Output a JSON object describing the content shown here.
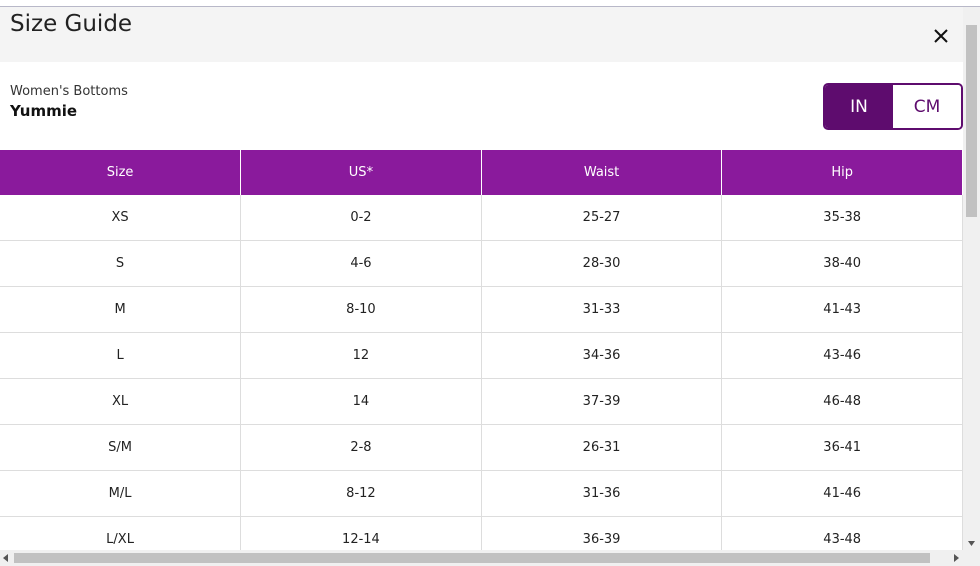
{
  "header": {
    "title": "Size Guide"
  },
  "product": {
    "category": "Women's Bottoms",
    "brand": "Yummie"
  },
  "unit_toggle": {
    "options": [
      "IN",
      "CM"
    ],
    "selected": "IN"
  },
  "table": {
    "columns": [
      "Size",
      "US*",
      "Waist",
      "Hip"
    ],
    "rows": [
      [
        "XS",
        "0-2",
        "25-27",
        "35-38"
      ],
      [
        "S",
        "4-6",
        "28-30",
        "38-40"
      ],
      [
        "M",
        "8-10",
        "31-33",
        "41-43"
      ],
      [
        "L",
        "12",
        "34-36",
        "43-46"
      ],
      [
        "XL",
        "14",
        "37-39",
        "46-48"
      ],
      [
        "S/M",
        "2-8",
        "26-31",
        "36-41"
      ],
      [
        "M/L",
        "8-12",
        "31-36",
        "41-46"
      ],
      [
        "L/XL",
        "12-14",
        "36-39",
        "43-48"
      ]
    ]
  }
}
